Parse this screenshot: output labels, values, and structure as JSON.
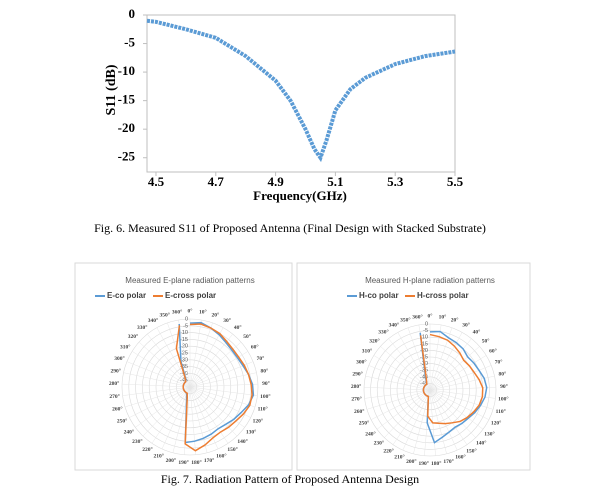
{
  "chart_data": [
    {
      "type": "line",
      "xlabel": "Frequency(GHz)",
      "ylabel": "S11 (dB)",
      "x": [
        4.47,
        4.5,
        4.6,
        4.7,
        4.8,
        4.9,
        4.95,
        5.0,
        5.03,
        5.05,
        5.07,
        5.1,
        5.15,
        5.2,
        5.3,
        5.4,
        5.5
      ],
      "series": [
        {
          "name": "S11",
          "color": "#5b9bd5",
          "values": [
            -1,
            -1.2,
            -2.5,
            -4,
            -7.2,
            -11.5,
            -15,
            -20,
            -23.5,
            -25,
            -22,
            -16.7,
            -13,
            -11,
            -8.6,
            -7.2,
            -6.4
          ]
        }
      ],
      "xlim": [
        4.47,
        5.5
      ],
      "xticks": [
        4.5,
        4.7,
        4.9,
        5.1,
        5.3,
        5.5
      ],
      "ylim": [
        -27.5,
        0
      ],
      "yticks": [
        0,
        -5,
        -10,
        -15,
        -20,
        -25
      ],
      "caption": "Fig. 6. Measured S11 of Proposed  Antenna  (Final Design with Stacked Substrate)"
    },
    {
      "type": "radar",
      "title": "Measured E-plane radiation patterns",
      "categories": [
        "0°",
        "10°",
        "20°",
        "30°",
        "40°",
        "50°",
        "60°",
        "70°",
        "80°",
        "90°",
        "100°",
        "110°",
        "120°",
        "130°",
        "140°",
        "150°",
        "160°",
        "170°",
        "180°",
        "190°",
        "200°",
        "210°",
        "220°",
        "230°",
        "240°",
        "250°",
        "260°",
        "270°",
        "280°",
        "290°",
        "300°",
        "310°",
        "320°",
        "330°",
        "340°",
        "350°",
        "360°"
      ],
      "rlim": [
        -50,
        0
      ],
      "rticks": [
        0,
        -5,
        -10,
        -15,
        -20,
        -25,
        -30,
        -35,
        -40,
        -45
      ],
      "series": [
        {
          "name": "E-co polar",
          "color": "#5b9bd5",
          "values": [
            -3,
            -2,
            -4,
            -6,
            -8,
            -9,
            -9,
            -8,
            -6,
            -4,
            -3,
            -5,
            -8,
            -10,
            -12,
            -13,
            -12,
            -11,
            -10,
            -9,
            -40,
            -44,
            -45,
            -45,
            -45,
            -45,
            -45,
            -45,
            -45,
            -45,
            -45,
            -45,
            -45,
            -45,
            -44,
            -30,
            -3
          ]
        },
        {
          "name": "E-cross polar",
          "color": "#ed7d31",
          "values": [
            -4,
            -3,
            -4,
            -5,
            -7,
            -8,
            -8,
            -7,
            -6,
            -5,
            -4,
            -4,
            -6,
            -8,
            -9,
            -10,
            -9,
            -6,
            -3,
            -8,
            -42,
            -45,
            -45,
            -45,
            -45,
            -45,
            -45,
            -45,
            -45,
            -45,
            -45,
            -45,
            -45,
            -45,
            -43,
            -20,
            -4
          ]
        }
      ]
    },
    {
      "type": "radar",
      "title": "Measured H-plane radiation patterns",
      "categories": [
        "0°",
        "10°",
        "20°",
        "30°",
        "40°",
        "50°",
        "60°",
        "70°",
        "80°",
        "90°",
        "100°",
        "110°",
        "120°",
        "130°",
        "140°",
        "150°",
        "160°",
        "170°",
        "180°",
        "190°",
        "200°",
        "210°",
        "220°",
        "230°",
        "240°",
        "250°",
        "260°",
        "270°",
        "280°",
        "290°",
        "300°",
        "310°",
        "320°",
        "330°",
        "340°",
        "350°",
        "360°"
      ],
      "rlim": [
        -50,
        0
      ],
      "rticks": [
        0,
        -5,
        -10,
        -15,
        -20,
        -25,
        -30,
        -35,
        -40,
        -45
      ],
      "caption": "Fig. 7. Radiation Pattern of Proposed Antenna Design",
      "series": [
        {
          "name": "H-co polar",
          "color": "#5b9bd5",
          "values": [
            -6,
            -5,
            -8,
            -9,
            -10,
            -12,
            -11,
            -10,
            -8,
            -7,
            -8,
            -10,
            -12,
            -14,
            -15,
            -16,
            -15,
            -13,
            -10,
            -25,
            -45,
            -45,
            -45,
            -45,
            -45,
            -45,
            -45,
            -45,
            -45,
            -45,
            -45,
            -45,
            -45,
            -45,
            -45,
            -40,
            -6
          ]
        },
        {
          "name": "H-cross polar",
          "color": "#ed7d31",
          "values": [
            -8,
            -9,
            -10,
            -12,
            -14,
            -16,
            -15,
            -14,
            -12,
            -10,
            -10,
            -11,
            -13,
            -15,
            -17,
            -20,
            -22,
            -24,
            -25,
            -30,
            -45,
            -45,
            -45,
            -45,
            -45,
            -45,
            -45,
            -45,
            -45,
            -45,
            -45,
            -45,
            -45,
            -45,
            -45,
            -42,
            -8
          ]
        }
      ]
    }
  ]
}
